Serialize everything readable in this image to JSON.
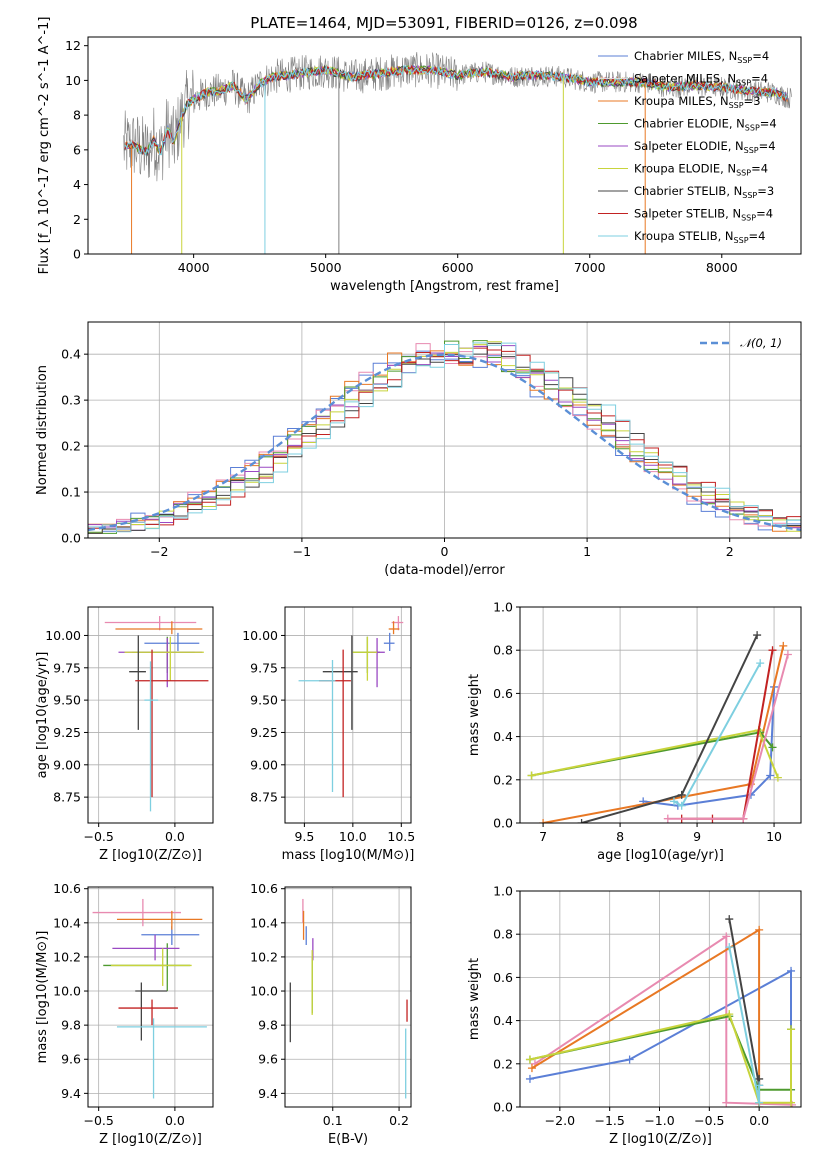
{
  "figure": {
    "title": "PLATE=1464, MJD=53091, FIBERID=0126, z=0.098"
  },
  "models": [
    {
      "name": "Chabrier MILES",
      "nssp": "4",
      "color": "#5b7fd6"
    },
    {
      "name": "Salpeter MILES",
      "nssp": "4",
      "color": "#d9d9d9"
    },
    {
      "name": "Kroupa MILES",
      "nssp": "3",
      "color": "#e87824"
    },
    {
      "name": "Chabrier ELODIE",
      "nssp": "4",
      "color": "#4e9a2e"
    },
    {
      "name": "Salpeter ELODIE",
      "nssp": "4",
      "color": "#9a49c3"
    },
    {
      "name": "Kroupa ELODIE",
      "nssp": "4",
      "color": "#c8d43c"
    },
    {
      "name": "Chabrier STELIB",
      "nssp": "3",
      "color": "#444444"
    },
    {
      "name": "Salpeter STELIB",
      "nssp": "4",
      "color": "#c22222"
    },
    {
      "name": "Kroupa STELIB",
      "nssp": "4",
      "color": "#7ecfe0"
    }
  ],
  "chart_data": [
    {
      "id": "spectrum",
      "type": "line",
      "xlabel": "wavelength [Angstrom, rest frame]",
      "ylabel": "Flux [f_λ 10^-17 erg cm^-2 s^-1 A^-1]",
      "xlim": [
        3200,
        8600
      ],
      "ylim": [
        0,
        12.5
      ],
      "xticks": [
        4000,
        5000,
        6000,
        7000,
        8000
      ],
      "yticks": [
        0,
        2,
        4,
        6,
        8,
        10,
        12
      ],
      "grid": false,
      "legend": "right",
      "data_series": {
        "name": "data",
        "color": "#808080"
      },
      "model_shape": {
        "x": [
          3480,
          3550,
          3600,
          3650,
          3700,
          3750,
          3800,
          3850,
          3900,
          3950,
          4000,
          4100,
          4200,
          4300,
          4400,
          4500,
          4600,
          4800,
          5000,
          5200,
          5400,
          5600,
          5800,
          6000,
          6200,
          6400,
          6600,
          6800,
          7000,
          7200,
          7400,
          7600,
          7800,
          8000,
          8200,
          8400,
          8500
        ],
        "y": [
          6.2,
          6.3,
          6.0,
          5.9,
          6.6,
          5.8,
          7.2,
          6.4,
          7.7,
          8.6,
          8.9,
          9.3,
          9.4,
          9.7,
          8.9,
          9.8,
          10.2,
          10.4,
          10.6,
          10.2,
          10.4,
          10.6,
          10.6,
          10.3,
          10.5,
          10.2,
          10.3,
          10.2,
          9.9,
          9.9,
          9.9,
          9.6,
          9.7,
          9.6,
          9.4,
          9.3,
          9.0
        ]
      },
      "drops": [
        {
          "x": 3530,
          "color": "#e87824"
        },
        {
          "x": 3910,
          "color": "#c8d43c"
        },
        {
          "x": 4540,
          "color": "#7ecfe0"
        },
        {
          "x": 5100,
          "color": "#808080"
        },
        {
          "x": 6800,
          "color": "#c8d43c"
        },
        {
          "x": 7420,
          "color": "#e87824"
        }
      ]
    },
    {
      "id": "residuals",
      "type": "area",
      "xlabel": "(data-model)/error",
      "ylabel": "Normed distribution",
      "xlim": [
        -2.5,
        2.5
      ],
      "ylim": [
        0,
        0.47
      ],
      "xticks": [
        -2,
        -1,
        0,
        1,
        2
      ],
      "yticks": [
        0.0,
        0.1,
        0.2,
        0.3,
        0.4
      ],
      "grid": true,
      "legend": "top-right",
      "reference_label": "𝒩(0, 1)",
      "reference_color": "#5b8fd6",
      "bin_width": 0.1
    },
    {
      "id": "age-vs-Z",
      "type": "scatter",
      "xlabel": "Z [log10(Z/Z⊙)]",
      "ylabel": "age [log10(age/yr)]",
      "xlim": [
        -0.57,
        0.25
      ],
      "ylim": [
        8.55,
        10.22
      ],
      "xticks": [
        -0.5,
        0.0
      ],
      "yticks": [
        8.75,
        9.0,
        9.25,
        9.5,
        9.75,
        10.0
      ],
      "grid": true,
      "points": [
        {
          "model": 0,
          "x": 0.02,
          "xerr": [
            0.22,
            0.14
          ],
          "y": 9.94,
          "yerr": [
            0.06,
            0.08
          ]
        },
        {
          "model": 1,
          "x": -0.1,
          "xerr": [
            0.36,
            0.24
          ],
          "y": 10.1,
          "yerr": [
            0.06,
            0.05
          ]
        },
        {
          "model": 2,
          "x": -0.02,
          "xerr": [
            0.37,
            0.2
          ],
          "y": 10.05,
          "yerr": [
            0.04,
            0.06
          ]
        },
        {
          "model": 3,
          "x": -0.05,
          "xerr": [
            0.23,
            0.18
          ],
          "y": 9.87,
          "yerr": [
            0.16,
            0.12
          ]
        },
        {
          "model": 4,
          "x": -0.05,
          "xerr": [
            0.32,
            0.23
          ],
          "y": 9.87,
          "yerr": [
            0.27,
            0.11
          ]
        },
        {
          "model": 5,
          "x": -0.03,
          "xerr": [
            0.3,
            0.22
          ],
          "y": 9.87,
          "yerr": [
            0.22,
            0.12
          ]
        },
        {
          "model": 6,
          "x": -0.24,
          "xerr": [
            0.06,
            0.05
          ],
          "y": 9.72,
          "yerr": [
            0.45,
            0.28
          ]
        },
        {
          "model": 7,
          "x": -0.15,
          "xerr": [
            0.11,
            0.37
          ],
          "y": 9.65,
          "yerr": [
            0.9,
            0.24
          ]
        },
        {
          "model": 8,
          "x": -0.16,
          "xerr": [
            0.04,
            0.05
          ],
          "y": 9.5,
          "yerr": [
            0.86,
            0.3
          ]
        }
      ]
    },
    {
      "id": "age-vs-mass",
      "type": "scatter",
      "xlabel": "mass [log10(M/M⊙)]",
      "ylabel": "",
      "xlim": [
        9.3,
        10.6
      ],
      "ylim": [
        8.55,
        10.22
      ],
      "xticks": [
        9.5,
        10.0,
        10.5
      ],
      "yticks": [
        8.75,
        9.0,
        9.25,
        9.5,
        9.75,
        10.0
      ],
      "grid": true,
      "points": [
        {
          "model": 0,
          "x": 10.38,
          "xerr": [
            0.06,
            0.05
          ],
          "y": 9.94,
          "yerr": [
            0.06,
            0.08
          ]
        },
        {
          "model": 1,
          "x": 10.47,
          "xerr": [
            0.07,
            0.05
          ],
          "y": 10.1,
          "yerr": [
            0.06,
            0.05
          ]
        },
        {
          "model": 2,
          "x": 10.42,
          "xerr": [
            0.05,
            0.06
          ],
          "y": 10.05,
          "yerr": [
            0.04,
            0.06
          ]
        },
        {
          "model": 3,
          "x": 10.15,
          "xerr": [
            0.15,
            0.13
          ],
          "y": 9.87,
          "yerr": [
            0.16,
            0.12
          ]
        },
        {
          "model": 4,
          "x": 10.25,
          "xerr": [
            0.07,
            0.08
          ],
          "y": 9.87,
          "yerr": [
            0.27,
            0.11
          ]
        },
        {
          "model": 5,
          "x": 10.15,
          "xerr": [
            0.15,
            0.1
          ],
          "y": 9.87,
          "yerr": [
            0.22,
            0.12
          ]
        },
        {
          "model": 6,
          "x": 9.99,
          "xerr": [
            0.3,
            0.06
          ],
          "y": 9.72,
          "yerr": [
            0.45,
            0.28
          ]
        },
        {
          "model": 7,
          "x": 9.9,
          "xerr": [
            0.25,
            0.08
          ],
          "y": 9.65,
          "yerr": [
            0.9,
            0.24
          ]
        },
        {
          "model": 8,
          "x": 9.79,
          "xerr": [
            0.35,
            0.03
          ],
          "y": 9.65,
          "yerr": [
            0.86,
            0.16
          ]
        }
      ]
    },
    {
      "id": "massweight-vs-age",
      "type": "line",
      "xlabel": "age [log10(age/yr)]",
      "ylabel": "mass weight",
      "xlim": [
        6.7,
        10.35
      ],
      "ylim": [
        0,
        1.0
      ],
      "xticks": [
        7,
        8,
        9,
        10
      ],
      "yticks": [
        0.0,
        0.2,
        0.4,
        0.6,
        0.8,
        1.0
      ],
      "grid": true,
      "series": [
        {
          "model": 0,
          "x": [
            8.3,
            8.75,
            9.7,
            9.95,
            10.0
          ],
          "y": [
            0.1,
            0.08,
            0.13,
            0.22,
            0.63
          ]
        },
        {
          "model": 2,
          "x": [
            7.0,
            9.7,
            10.12
          ],
          "y": [
            0.0,
            0.18,
            0.82
          ]
        },
        {
          "model": 3,
          "x": [
            6.85,
            9.82,
            9.98
          ],
          "y": [
            0.22,
            0.42,
            0.35
          ]
        },
        {
          "model": 5,
          "x": [
            6.85,
            9.8,
            10.05
          ],
          "y": [
            0.22,
            0.43,
            0.21
          ]
        },
        {
          "model": 6,
          "x": [
            7.5,
            8.8,
            9.78
          ],
          "y": [
            0.0,
            0.13,
            0.87
          ]
        },
        {
          "model": 7,
          "x": [
            8.8,
            9.2,
            9.6,
            9.98
          ],
          "y": [
            0.02,
            0.02,
            0.02,
            0.8
          ]
        },
        {
          "model": 8,
          "x": [
            8.7,
            8.8,
            9.82
          ],
          "y": [
            0.1,
            0.08,
            0.74
          ]
        },
        {
          "model": 1,
          "x": [
            8.62,
            9.6,
            10.18
          ],
          "y": [
            0.02,
            0.02,
            0.78
          ]
        }
      ]
    },
    {
      "id": "mass-vs-Z",
      "type": "scatter",
      "xlabel": "Z [log10(Z/Z⊙)]",
      "ylabel": "mass [log10(M/M⊙)]",
      "xlim": [
        -0.57,
        0.25
      ],
      "ylim": [
        9.32,
        10.61
      ],
      "xticks": [
        -0.5,
        0.0
      ],
      "yticks": [
        9.4,
        9.6,
        9.8,
        10.0,
        10.2,
        10.4,
        10.6
      ],
      "grid": true,
      "points": [
        {
          "model": 0,
          "x": -0.02,
          "xerr": [
            0.2,
            0.18
          ],
          "y": 10.33,
          "yerr": [
            0.06,
            0.05
          ]
        },
        {
          "model": 1,
          "x": -0.21,
          "xerr": [
            0.33,
            0.25
          ],
          "y": 10.46,
          "yerr": [
            0.08,
            0.08
          ]
        },
        {
          "model": 2,
          "x": -0.02,
          "xerr": [
            0.36,
            0.2
          ],
          "y": 10.42,
          "yerr": [
            0.06,
            0.05
          ]
        },
        {
          "model": 3,
          "x": -0.05,
          "xerr": [
            0.42,
            0.15
          ],
          "y": 10.15,
          "yerr": [
            0.15,
            0.13
          ]
        },
        {
          "model": 4,
          "x": -0.13,
          "xerr": [
            0.28,
            0.16
          ],
          "y": 10.25,
          "yerr": [
            0.07,
            0.08
          ]
        },
        {
          "model": 5,
          "x": -0.08,
          "xerr": [
            0.34,
            0.19
          ],
          "y": 10.15,
          "yerr": [
            0.12,
            0.1
          ]
        },
        {
          "model": 6,
          "x": -0.22,
          "xerr": [
            0.04,
            0.17
          ],
          "y": 10.0,
          "yerr": [
            0.29,
            0.05
          ]
        },
        {
          "model": 7,
          "x": -0.15,
          "xerr": [
            0.22,
            0.17
          ],
          "y": 9.9,
          "yerr": [
            0.1,
            0.05
          ]
        },
        {
          "model": 8,
          "x": -0.14,
          "xerr": [
            0.24,
            0.35
          ],
          "y": 9.79,
          "yerr": [
            0.42,
            0.05
          ]
        }
      ]
    },
    {
      "id": "mass-vs-ebv",
      "type": "scatter",
      "xlabel": "E(B-V)",
      "ylabel": "",
      "xlim": [
        0.028,
        0.218
      ],
      "ylim": [
        9.32,
        10.61
      ],
      "xticks": [
        0.1,
        0.2
      ],
      "yticks": [
        9.4,
        9.6,
        9.8,
        10.0,
        10.2,
        10.4,
        10.6
      ],
      "grid": true,
      "points": [
        {
          "model": 0,
          "x": 0.06,
          "y": 10.33,
          "yerr": [
            0.06,
            0.05
          ]
        },
        {
          "model": 1,
          "x": 0.055,
          "y": 10.46,
          "yerr": [
            0.06,
            0.08
          ]
        },
        {
          "model": 2,
          "x": 0.056,
          "y": 10.42,
          "yerr": [
            0.12,
            0.05
          ]
        },
        {
          "model": 3,
          "x": 0.069,
          "y": 10.15,
          "yerr": [
            0.28,
            0.05
          ]
        },
        {
          "model": 4,
          "x": 0.07,
          "y": 10.25,
          "yerr": [
            0.07,
            0.06
          ]
        },
        {
          "model": 5,
          "x": 0.069,
          "y": 10.14,
          "yerr": [
            0.28,
            0.1
          ]
        },
        {
          "model": 6,
          "x": 0.036,
          "y": 9.9,
          "yerr": [
            0.2,
            0.15
          ]
        },
        {
          "model": 7,
          "x": 0.212,
          "y": 9.87,
          "yerr": [
            0.05,
            0.08
          ]
        },
        {
          "model": 8,
          "x": 0.21,
          "y": 9.6,
          "yerr": [
            0.23,
            0.18
          ]
        }
      ]
    },
    {
      "id": "massweight-vs-Z",
      "type": "line",
      "xlabel": "Z [log10(Z/Z⊙)]",
      "ylabel": "mass weight",
      "xlim": [
        -2.4,
        0.42
      ],
      "ylim": [
        0,
        1.0
      ],
      "xticks": [
        -2.0,
        -1.5,
        -1.0,
        -0.5,
        0.0
      ],
      "yticks": [
        0.0,
        0.2,
        0.4,
        0.6,
        0.8,
        1.0
      ],
      "grid": true,
      "series": [
        {
          "model": 0,
          "x": [
            -2.3,
            -1.3,
            0.32,
            0.32
          ],
          "y": [
            0.13,
            0.22,
            0.63,
            0.08
          ]
        },
        {
          "model": 1,
          "x": [
            -2.25,
            -0.33,
            -0.33,
            0.33
          ],
          "y": [
            0.2,
            0.79,
            0.02,
            0.01
          ]
        },
        {
          "model": 2,
          "x": [
            -2.28,
            0.0,
            0.0
          ],
          "y": [
            0.18,
            0.82,
            0.0
          ]
        },
        {
          "model": 3,
          "x": [
            -2.3,
            -0.3,
            0.0,
            0.32,
            0.32
          ],
          "y": [
            0.22,
            0.42,
            0.08,
            0.08,
            0.36
          ]
        },
        {
          "model": 5,
          "x": [
            -2.3,
            -0.3,
            0.0,
            0.32,
            0.32
          ],
          "y": [
            0.22,
            0.43,
            0.02,
            0.02,
            0.36
          ]
        },
        {
          "model": 6,
          "x": [
            -0.3,
            0.0,
            0.0
          ],
          "y": [
            0.87,
            0.1,
            0.13
          ]
        },
        {
          "model": 8,
          "x": [
            -0.3,
            0.0,
            0.0
          ],
          "y": [
            0.74,
            0.02,
            0.1
          ]
        }
      ]
    }
  ]
}
